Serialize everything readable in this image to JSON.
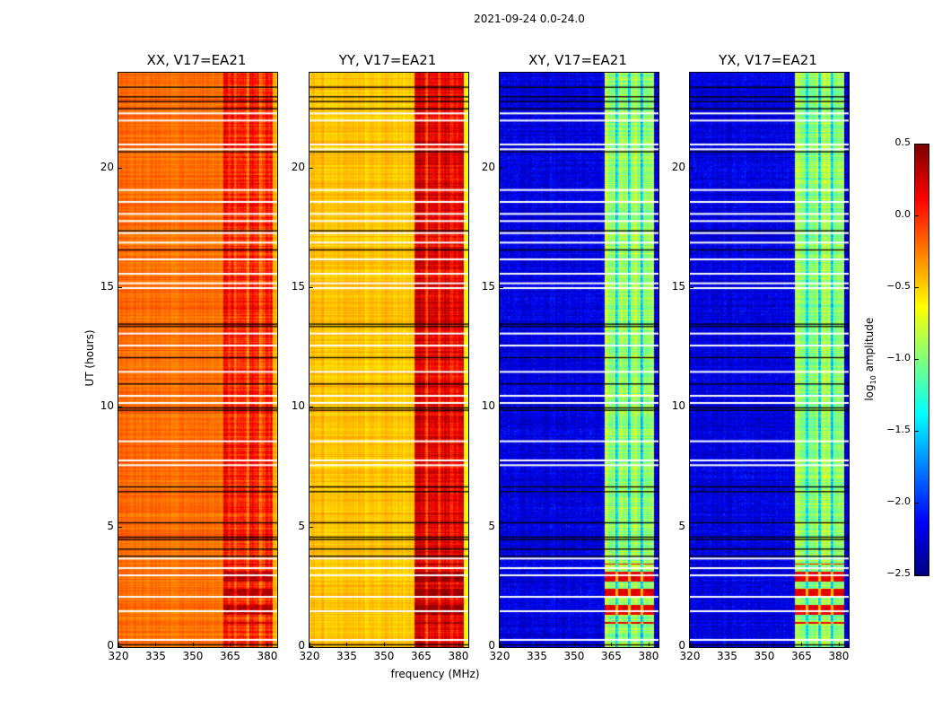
{
  "chart_data": {
    "type": "heatmap",
    "title": "2021-09-24 0.0-24.0",
    "ylabel": "UT (hours)",
    "xlabel": "frequency (MHz)",
    "xlim": [
      320,
      384
    ],
    "ylim": [
      0,
      24
    ],
    "xticks": [
      320,
      335,
      350,
      365,
      380
    ],
    "yticks": [
      0,
      5,
      10,
      15,
      20
    ],
    "colormap": "jet",
    "colorbar": {
      "label": "log10 amplitude",
      "label_main": "log",
      "label_sub": "10",
      "label_rest": " amplitude",
      "range": [
        -2.5,
        0.5
      ],
      "ticks": [
        "0.5",
        "0.0",
        "−0.5",
        "−1.0",
        "−1.5",
        "−2.0",
        "−2.5"
      ],
      "tick_values": [
        0.5,
        0.0,
        -0.5,
        -1.0,
        -1.5,
        -2.0,
        -2.5
      ]
    },
    "flagged_rows_white_hours": [
      0.3,
      1.5,
      2.1,
      3.0,
      3.3,
      3.7,
      7.6,
      7.8,
      8.6,
      10.2,
      10.5,
      11.5,
      12.6,
      13.1,
      15.0,
      15.2,
      15.6,
      16.2,
      16.9,
      17.3,
      17.8,
      18.1,
      18.6,
      19.1,
      20.8,
      21.0,
      22.0,
      22.3
    ],
    "black_rows_hours": [
      0.1,
      3.8,
      4.1,
      4.5,
      4.6,
      5.2,
      6.5,
      6.7,
      9.9,
      10.0,
      11.0,
      12.1,
      13.4,
      13.5,
      16.6,
      17.4,
      20.7,
      22.5,
      22.8,
      23.0,
      23.4
    ],
    "band_range_mhz": [
      362,
      382
    ],
    "band_gaps_mhz": [
      367,
      372,
      377
    ],
    "panels": [
      {
        "title": "XX, V17=EA21",
        "background": -0.2,
        "band": 0.05,
        "band_peak_hours": [
          1.0,
          3.5
        ],
        "band_peak": 0.35
      },
      {
        "title": "YY, V17=EA21",
        "background": -0.45,
        "band": 0.2,
        "band_peak_hours": [
          1.0,
          3.5
        ],
        "band_peak": 0.45
      },
      {
        "title": "XY, V17=EA21",
        "background": -2.2,
        "band": -0.9,
        "band_peak_hours": [
          1.0,
          3.5
        ],
        "band_peak": 0.2
      },
      {
        "title": "YX, V17=EA21",
        "background": -2.2,
        "band": -0.9,
        "band_peak_hours": [
          1.0,
          3.5
        ],
        "band_peak": 0.2
      }
    ]
  }
}
